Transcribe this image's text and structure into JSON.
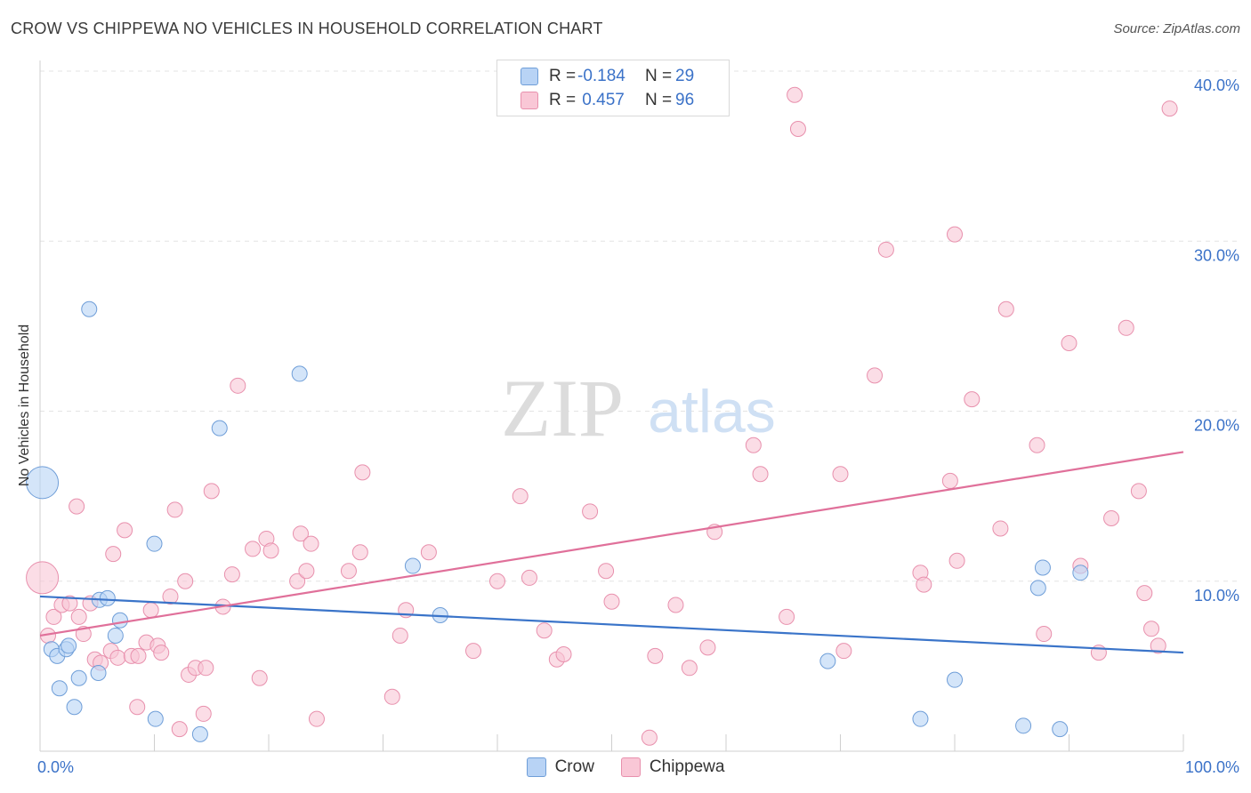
{
  "header": {
    "title": "CROW VS CHIPPEWA NO VEHICLES IN HOUSEHOLD CORRELATION CHART",
    "source": "Source: ZipAtlas.com"
  },
  "watermark": {
    "zip": "ZIP",
    "atlas": "atlas"
  },
  "legend": {
    "series": [
      {
        "name": "Crow",
        "r_label": "R =",
        "r_value": "-0.184",
        "n_label": "N =",
        "n_value": "29"
      },
      {
        "name": "Chippewa",
        "r_label": "R =",
        "r_value": " 0.457",
        "n_label": "N =",
        "n_value": "96"
      }
    ]
  },
  "colors": {
    "crow_fill": "#b8d3f5",
    "crow_stroke": "#6f9ed8",
    "crow_line": "#3a74c9",
    "chippewa_fill": "#f9c7d6",
    "chippewa_stroke": "#e890ad",
    "chippewa_line": "#e0709a",
    "tick_label": "#3b72c8",
    "grid": "#e3e3e3"
  },
  "chart_data": {
    "type": "scatter",
    "title": "CROW VS CHIPPEWA NO VEHICLES IN HOUSEHOLD CORRELATION CHART",
    "xlabel": "",
    "ylabel": "No Vehicles in Household",
    "xlim": [
      0,
      100
    ],
    "ylim": [
      0,
      40
    ],
    "x_tick_labels": [
      "0.0%",
      "100.0%"
    ],
    "y_ticks": [
      10,
      20,
      30,
      40
    ],
    "y_tick_labels": [
      "10.0%",
      "20.0%",
      "30.0%",
      "40.0%"
    ],
    "grid": true,
    "legend_position": "top-center",
    "series": [
      {
        "name": "Crow",
        "points": [
          [
            0.2,
            15.8,
            "large"
          ],
          [
            1.0,
            6.0
          ],
          [
            1.5,
            5.6
          ],
          [
            2.3,
            6.0
          ],
          [
            2.5,
            6.2
          ],
          [
            1.7,
            3.7
          ],
          [
            3.0,
            2.6
          ],
          [
            3.4,
            4.3
          ],
          [
            4.3,
            26.0
          ],
          [
            5.1,
            4.6
          ],
          [
            5.2,
            8.9
          ],
          [
            5.9,
            9.0
          ],
          [
            6.6,
            6.8
          ],
          [
            7.0,
            7.7
          ],
          [
            10.0,
            12.2
          ],
          [
            10.1,
            1.9
          ],
          [
            14.0,
            1.0
          ],
          [
            15.7,
            19.0
          ],
          [
            22.7,
            22.2
          ],
          [
            32.6,
            10.9
          ],
          [
            35.0,
            8.0
          ],
          [
            68.9,
            5.3
          ],
          [
            77.0,
            1.9
          ],
          [
            80.0,
            4.2
          ],
          [
            87.3,
            9.6
          ],
          [
            87.7,
            10.8
          ],
          [
            89.2,
            1.3
          ],
          [
            91.0,
            10.5
          ],
          [
            86.0,
            1.5
          ]
        ]
      },
      {
        "name": "Chippewa",
        "points": [
          [
            0.2,
            10.2,
            "large"
          ],
          [
            0.7,
            6.8
          ],
          [
            1.2,
            7.9
          ],
          [
            1.9,
            8.6
          ],
          [
            2.6,
            8.7
          ],
          [
            3.4,
            7.9
          ],
          [
            3.2,
            14.4
          ],
          [
            3.8,
            6.9
          ],
          [
            4.4,
            8.7
          ],
          [
            4.8,
            5.4
          ],
          [
            5.3,
            5.2
          ],
          [
            6.2,
            5.9
          ],
          [
            6.4,
            11.6
          ],
          [
            6.8,
            5.5
          ],
          [
            7.4,
            13.0
          ],
          [
            8.0,
            5.6
          ],
          [
            8.5,
            2.6
          ],
          [
            8.6,
            5.6
          ],
          [
            9.3,
            6.4
          ],
          [
            9.7,
            8.3
          ],
          [
            10.3,
            6.2
          ],
          [
            10.6,
            5.8
          ],
          [
            11.4,
            9.1
          ],
          [
            11.8,
            14.2
          ],
          [
            12.2,
            1.3
          ],
          [
            12.7,
            10.0
          ],
          [
            13.0,
            4.5
          ],
          [
            13.6,
            4.9
          ],
          [
            14.3,
            2.2
          ],
          [
            14.5,
            4.9
          ],
          [
            15.0,
            15.3
          ],
          [
            16.0,
            8.5
          ],
          [
            16.8,
            10.4
          ],
          [
            17.3,
            21.5
          ],
          [
            18.6,
            11.9
          ],
          [
            19.2,
            4.3
          ],
          [
            19.8,
            12.5
          ],
          [
            20.2,
            11.8
          ],
          [
            22.5,
            10.0
          ],
          [
            22.8,
            12.8
          ],
          [
            23.3,
            10.6
          ],
          [
            23.7,
            12.2
          ],
          [
            24.2,
            1.9
          ],
          [
            27.0,
            10.6
          ],
          [
            28.0,
            11.7
          ],
          [
            28.2,
            16.4
          ],
          [
            30.8,
            3.2
          ],
          [
            31.5,
            6.8
          ],
          [
            32.0,
            8.3
          ],
          [
            34.0,
            11.7
          ],
          [
            37.9,
            5.9
          ],
          [
            40.0,
            10.0
          ],
          [
            42.0,
            15.0
          ],
          [
            42.8,
            10.2
          ],
          [
            44.1,
            7.1
          ],
          [
            45.2,
            5.4
          ],
          [
            45.8,
            5.7
          ],
          [
            48.1,
            14.1
          ],
          [
            49.5,
            10.6
          ],
          [
            50.0,
            8.8
          ],
          [
            53.3,
            0.8
          ],
          [
            53.8,
            5.6
          ],
          [
            55.6,
            8.6
          ],
          [
            56.8,
            4.9
          ],
          [
            58.4,
            6.1
          ],
          [
            59.0,
            12.9
          ],
          [
            62.4,
            18.0
          ],
          [
            63.0,
            16.3
          ],
          [
            65.3,
            7.9
          ],
          [
            66.0,
            38.6
          ],
          [
            66.3,
            36.6
          ],
          [
            70.0,
            16.3
          ],
          [
            70.3,
            5.9
          ],
          [
            73.0,
            22.1
          ],
          [
            74.0,
            29.5
          ],
          [
            77.0,
            10.5
          ],
          [
            77.3,
            9.8
          ],
          [
            79.6,
            15.9
          ],
          [
            80.0,
            30.4
          ],
          [
            80.2,
            11.2
          ],
          [
            81.5,
            20.7
          ],
          [
            84.0,
            13.1
          ],
          [
            84.5,
            26.0
          ],
          [
            87.2,
            18.0
          ],
          [
            87.8,
            6.9
          ],
          [
            90.0,
            24.0
          ],
          [
            91.0,
            10.9
          ],
          [
            92.6,
            5.8
          ],
          [
            93.7,
            13.7
          ],
          [
            95.0,
            24.9
          ],
          [
            96.1,
            15.3
          ],
          [
            96.6,
            9.3
          ],
          [
            97.2,
            7.2
          ],
          [
            97.8,
            6.2
          ],
          [
            98.8,
            37.8
          ]
        ]
      }
    ],
    "trendlines": [
      {
        "series": "Crow",
        "x": [
          0,
          100
        ],
        "y": [
          9.1,
          5.8
        ]
      },
      {
        "series": "Chippewa",
        "x": [
          0,
          100
        ],
        "y": [
          6.8,
          17.6
        ]
      }
    ]
  }
}
